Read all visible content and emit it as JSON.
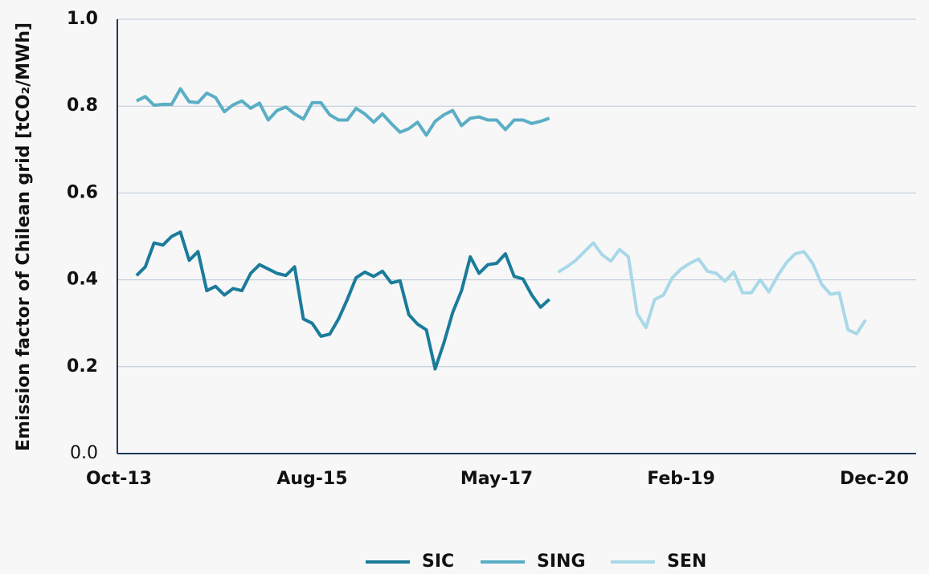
{
  "chart_data": {
    "type": "line",
    "ylabel": "Emission factor of Chilean grid [tCO₂/MWh]",
    "categories": [
      "Oct-13",
      null,
      null,
      null,
      null,
      null,
      null,
      null,
      null,
      null,
      null,
      null,
      null,
      null,
      null,
      null,
      null,
      null,
      null,
      null,
      null,
      null,
      "Aug-15",
      null,
      null,
      null,
      null,
      null,
      null,
      null,
      null,
      null,
      null,
      null,
      null,
      null,
      null,
      null,
      null,
      null,
      null,
      null,
      null,
      "May-17",
      null,
      null,
      null,
      null,
      null,
      null,
      null,
      null,
      null,
      null,
      null,
      null,
      null,
      null,
      null,
      null,
      null,
      null,
      null,
      null,
      "Feb-19",
      null,
      null,
      null,
      null,
      null,
      null,
      null,
      null,
      null,
      null,
      null,
      null,
      null,
      null,
      null,
      null,
      null,
      null,
      null,
      null,
      null,
      "Dec-20",
      null,
      null,
      null,
      null
    ],
    "series": [
      {
        "name": "SIC",
        "color": "#1b7b9b",
        "values": [
          null,
          null,
          0.41,
          0.43,
          0.485,
          0.48,
          0.5,
          0.51,
          0.445,
          0.465,
          0.375,
          0.385,
          0.365,
          0.38,
          0.375,
          0.415,
          0.435,
          0.425,
          0.415,
          0.41,
          0.43,
          0.31,
          0.3,
          0.27,
          0.275,
          0.31,
          0.355,
          0.405,
          0.418,
          0.408,
          0.42,
          0.393,
          0.398,
          0.32,
          0.298,
          0.285,
          0.195,
          0.255,
          0.325,
          0.375,
          0.453,
          0.415,
          0.435,
          0.438,
          0.46,
          0.408,
          0.402,
          0.365,
          0.337,
          0.355,
          null,
          null,
          null,
          null,
          null,
          null,
          null,
          null,
          null,
          null,
          null,
          null,
          null,
          null,
          null,
          null,
          null,
          null,
          null,
          null,
          null,
          null,
          null,
          null,
          null,
          null,
          null,
          null,
          null,
          null,
          null,
          null,
          null,
          null,
          null,
          null,
          null,
          null,
          null,
          null,
          null
        ]
      },
      {
        "name": "SING",
        "color": "#5aaec5",
        "values": [
          null,
          null,
          0.812,
          0.822,
          0.802,
          0.804,
          0.804,
          0.84,
          0.81,
          0.808,
          0.83,
          0.82,
          0.787,
          0.803,
          0.812,
          0.795,
          0.807,
          0.768,
          0.79,
          0.798,
          0.782,
          0.77,
          0.808,
          0.808,
          0.78,
          0.768,
          0.768,
          0.795,
          0.782,
          0.763,
          0.782,
          0.76,
          0.74,
          0.748,
          0.763,
          0.733,
          0.765,
          0.78,
          0.79,
          0.755,
          0.772,
          0.775,
          0.768,
          0.768,
          0.746,
          0.768,
          0.768,
          0.76,
          0.765,
          0.772,
          null,
          null,
          null,
          null,
          null,
          null,
          null,
          null,
          null,
          null,
          null,
          null,
          null,
          null,
          null,
          null,
          null,
          null,
          null,
          null,
          null,
          null,
          null,
          null,
          null,
          null,
          null,
          null,
          null,
          null,
          null,
          null,
          null,
          null,
          null,
          null,
          null,
          null,
          null,
          null,
          null
        ]
      },
      {
        "name": "SEN",
        "color": "#a9d8e8",
        "values": [
          null,
          null,
          null,
          null,
          null,
          null,
          null,
          null,
          null,
          null,
          null,
          null,
          null,
          null,
          null,
          null,
          null,
          null,
          null,
          null,
          null,
          null,
          null,
          null,
          null,
          null,
          null,
          null,
          null,
          null,
          null,
          null,
          null,
          null,
          null,
          null,
          null,
          null,
          null,
          null,
          null,
          null,
          null,
          null,
          null,
          null,
          null,
          null,
          null,
          null,
          0.418,
          0.43,
          0.445,
          0.465,
          0.485,
          0.458,
          0.443,
          0.47,
          0.453,
          0.322,
          0.29,
          0.355,
          0.365,
          0.405,
          0.425,
          0.438,
          0.448,
          0.42,
          0.415,
          0.397,
          0.418,
          0.37,
          0.37,
          0.4,
          0.372,
          0.41,
          0.44,
          0.46,
          0.465,
          0.437,
          0.39,
          0.367,
          0.37,
          0.285,
          0.276,
          0.308,
          null,
          null,
          null,
          null,
          null
        ]
      }
    ],
    "ylim": [
      0,
      1
    ],
    "yticks": [
      {
        "value": 0,
        "label": "0.0"
      },
      0.2,
      0.4,
      0.6,
      0.8,
      {
        "value": 1,
        "label": "1.0"
      }
    ],
    "grid": true,
    "legend": "bottom"
  }
}
